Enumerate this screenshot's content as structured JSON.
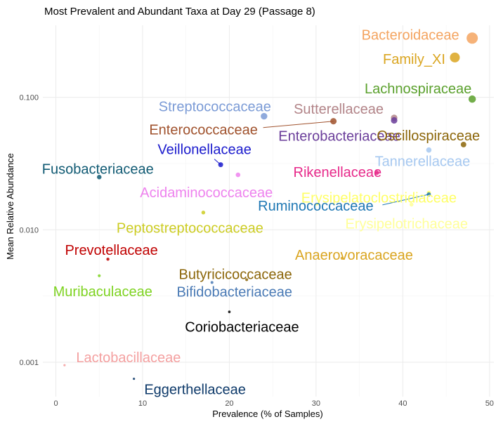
{
  "chart_data": {
    "type": "scatter",
    "title": "Most Prevalent and Abundant Taxa at Day 29 (Passage 8)",
    "xlabel": "Prevalence (% of Samples)",
    "ylabel": "Mean Relative Abundance",
    "x_scale": "linear",
    "y_scale": "log10",
    "xlim": [
      -1.5,
      50.5
    ],
    "ylim": [
      0.00055,
      0.35
    ],
    "x_ticks": [
      0,
      10,
      20,
      30,
      40,
      50
    ],
    "y_ticks": [
      0.001,
      0.01,
      0.1
    ],
    "y_tick_labels": [
      "0.001",
      "0.010",
      "0.100"
    ],
    "grid": true,
    "legend": "none",
    "points": [
      {
        "name": "Bacteroidaceae",
        "x": 48,
        "y": 0.28,
        "color": "#f4a460"
      },
      {
        "name": "Family_XI",
        "x": 46,
        "y": 0.2,
        "color": "#daa520"
      },
      {
        "name": "Lachnospiraceae",
        "x": 48,
        "y": 0.097,
        "color": "#5aa02c"
      },
      {
        "name": "Streptococcaceae",
        "x": 24,
        "y": 0.072,
        "color": "#7b9bd6"
      },
      {
        "name": "Sutterellaceae",
        "x": 39,
        "y": 0.07,
        "color": "#b28488"
      },
      {
        "name": "Enterobacteriaceae",
        "x": 39,
        "y": 0.067,
        "color": "#6a3d9a"
      },
      {
        "name": "Enterococcaceae",
        "x": 32,
        "y": 0.066,
        "color": "#a0522d"
      },
      {
        "name": "Oscillospiraceae",
        "x": 47,
        "y": 0.044,
        "color": "#8b6508"
      },
      {
        "name": "Tannerellaceae",
        "x": 43,
        "y": 0.04,
        "color": "#a6c8f0"
      },
      {
        "name": "Veillonellaceae",
        "x": 19,
        "y": 0.031,
        "color": "#1a1acd"
      },
      {
        "name": "Rikenellaceae",
        "x": 37,
        "y": 0.027,
        "color": "#e7298a"
      },
      {
        "name": "Acidaminococcaceae",
        "x": 21,
        "y": 0.026,
        "color": "#ee82ee"
      },
      {
        "name": "Fusobacteriaceae",
        "x": 5,
        "y": 0.025,
        "color": "#105a73"
      },
      {
        "name": "Erysipelatoclostridiaceae",
        "x": 43,
        "y": 0.019,
        "color": "#ffff66"
      },
      {
        "name": "Ruminococcaceae",
        "x": 43,
        "y": 0.0185,
        "color": "#1f78b4"
      },
      {
        "name": "Erysipelotrichaceae",
        "x": 41,
        "y": 0.0155,
        "color": "#ffff99"
      },
      {
        "name": "Peptostreptococcaceae",
        "x": 17,
        "y": 0.0135,
        "color": "#cccc22"
      },
      {
        "name": "Anaerovoracaceae",
        "x": 33,
        "y": 0.0061,
        "color": "#daa520"
      },
      {
        "name": "Prevotellaceae",
        "x": 6,
        "y": 0.006,
        "color": "#c00000"
      },
      {
        "name": "Muribaculaceae",
        "x": 5,
        "y": 0.0045,
        "color": "#7ed321"
      },
      {
        "name": "Butyricicoccaceae",
        "x": 22,
        "y": 0.0042,
        "color": "#8b6508"
      },
      {
        "name": "Bifidobacteriaceae",
        "x": 18,
        "y": 0.004,
        "color": "#4a7ab5"
      },
      {
        "name": "Coriobacteriaceae",
        "x": 20,
        "y": 0.0024,
        "color": "#000000"
      },
      {
        "name": "Lactobacillaceae",
        "x": 1,
        "y": 0.00095,
        "color": "#f4a0a0"
      },
      {
        "name": "Eggerthellaceae",
        "x": 9,
        "y": 0.00075,
        "color": "#0e3a6a"
      }
    ]
  }
}
